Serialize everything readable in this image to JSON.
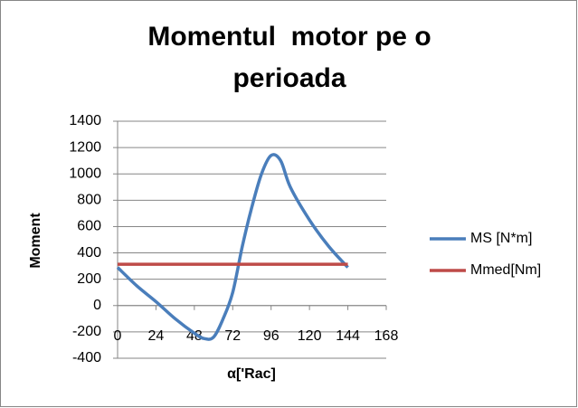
{
  "chart_data": {
    "type": "line",
    "title": "Momentul  motor pe o perioada",
    "x_label": "α['Rac]",
    "y_label": "Moment",
    "xlim": [
      0,
      168
    ],
    "xticks": [
      0,
      24,
      48,
      72,
      96,
      120,
      144,
      168
    ],
    "ylim": [
      -400,
      1400
    ],
    "yticks": [
      -400,
      -200,
      0,
      200,
      400,
      600,
      800,
      1000,
      1200,
      1400
    ],
    "grid": true,
    "legend": "right",
    "smooth": true,
    "series": [
      {
        "name": "MS [N*m]",
        "color": "#4a7ebb",
        "x": [
          0,
          12,
          24,
          36,
          48,
          54,
          60,
          66,
          72,
          78,
          84,
          90,
          96,
          102,
          108,
          120,
          132,
          144
        ],
        "values": [
          290,
          150,
          30,
          -100,
          -210,
          -250,
          -240,
          -100,
          100,
          450,
          750,
          1000,
          1140,
          1100,
          900,
          650,
          450,
          290
        ]
      },
      {
        "name": "Mmed[Nm]",
        "color": "#be4b48",
        "x": [
          0,
          144
        ],
        "values": [
          314,
          314
        ]
      }
    ]
  }
}
